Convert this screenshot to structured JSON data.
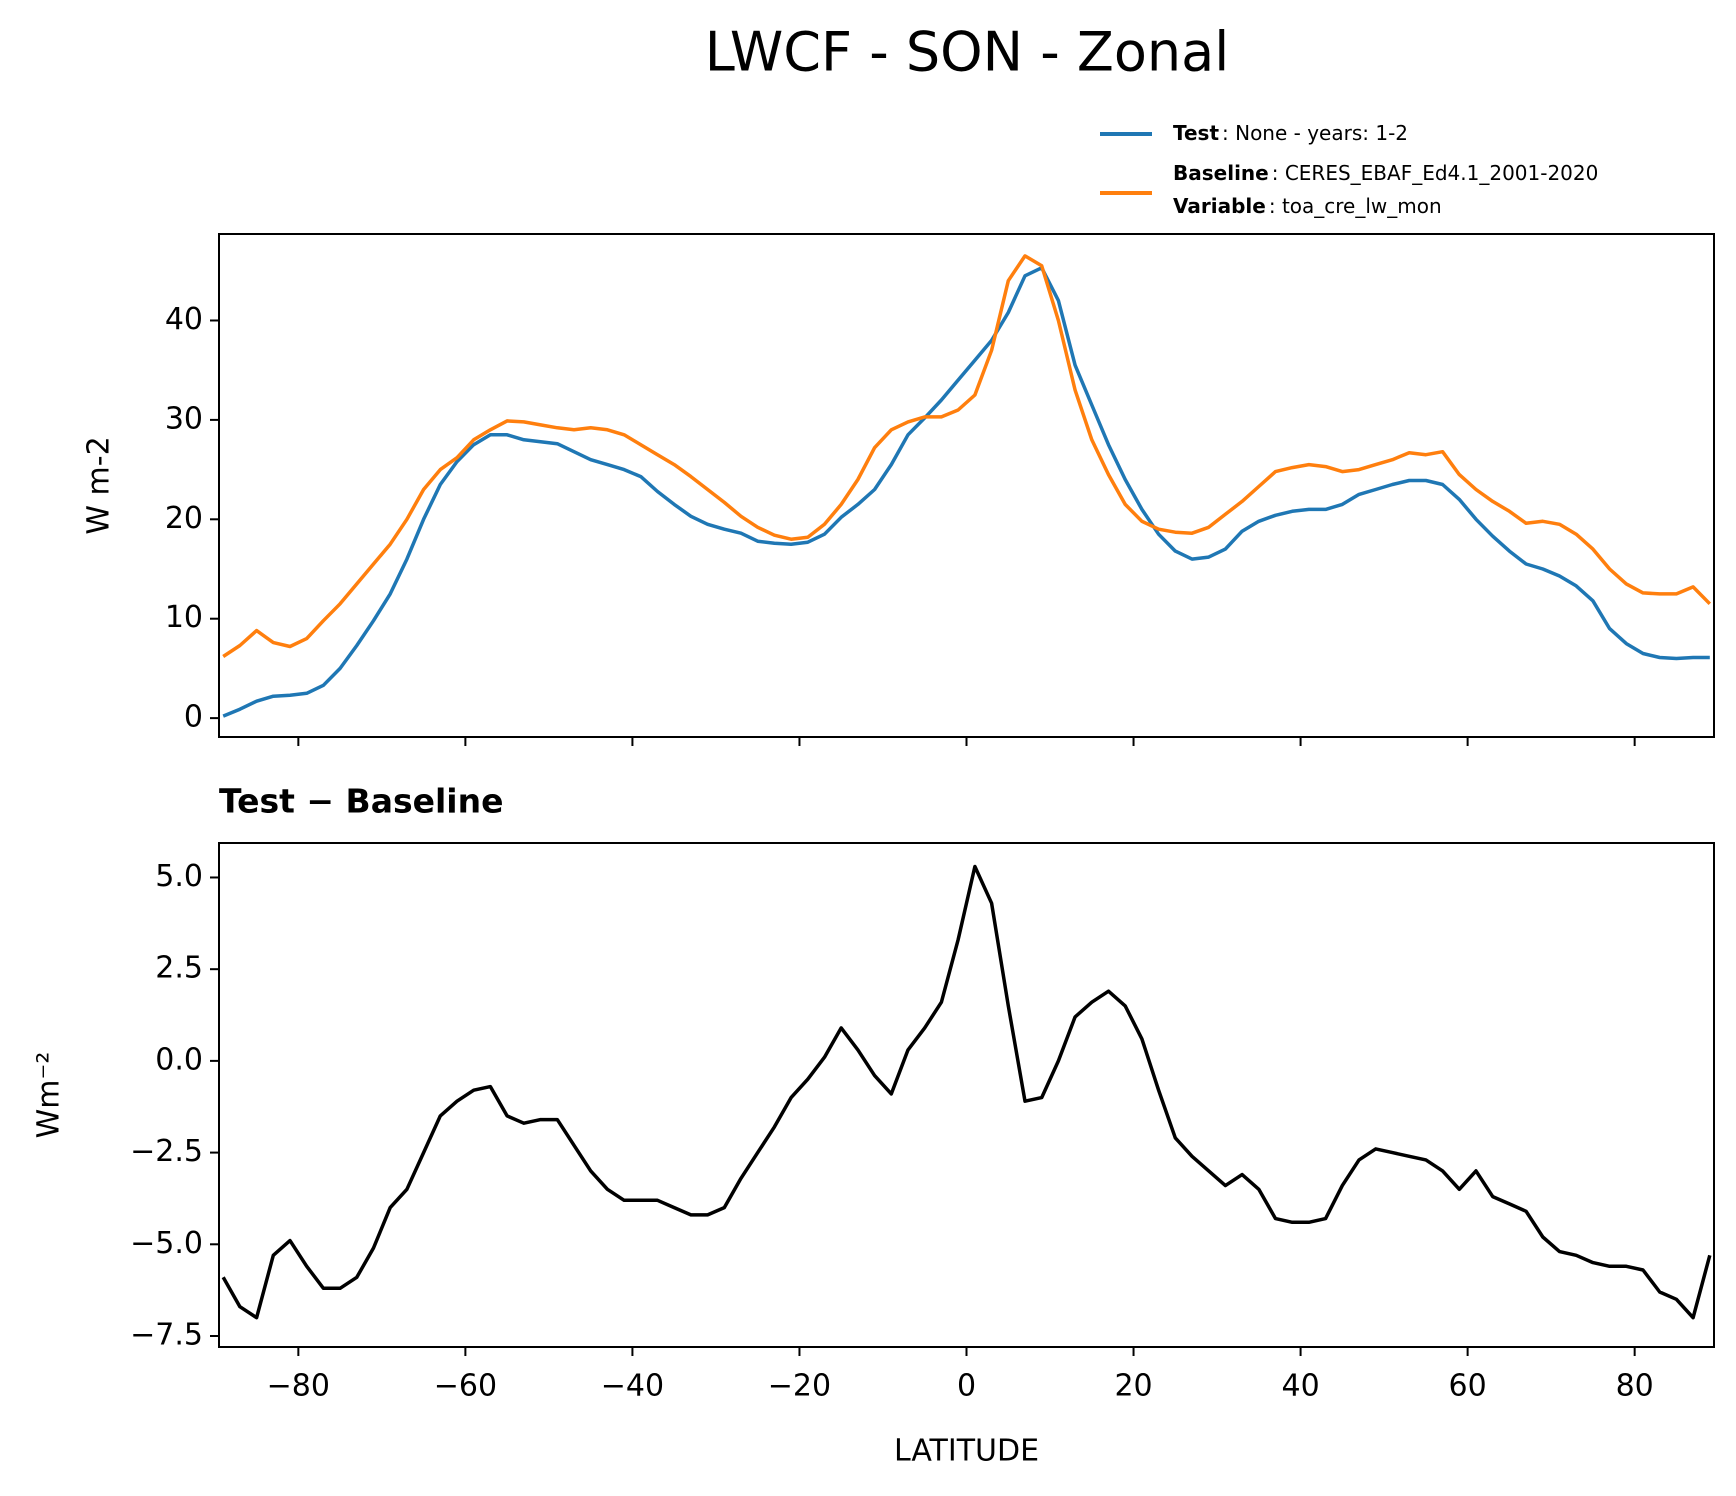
{
  "chart_data": [
    {
      "type": "line",
      "title": "LWCF - SON - Zonal",
      "ylabel": "W m-2",
      "x": [
        -89,
        -87,
        -85,
        -83,
        -81,
        -79,
        -77,
        -75,
        -73,
        -71,
        -69,
        -67,
        -65,
        -63,
        -61,
        -59,
        -57,
        -55,
        -53,
        -51,
        -49,
        -47,
        -45,
        -43,
        -41,
        -39,
        -37,
        -35,
        -33,
        -31,
        -29,
        -27,
        -25,
        -23,
        -21,
        -19,
        -17,
        -15,
        -13,
        -11,
        -9,
        -7,
        -5,
        -3,
        -1,
        1,
        3,
        5,
        7,
        9,
        11,
        13,
        15,
        17,
        19,
        21,
        23,
        25,
        27,
        29,
        31,
        33,
        35,
        37,
        39,
        41,
        43,
        45,
        47,
        49,
        51,
        53,
        55,
        57,
        59,
        61,
        63,
        65,
        67,
        69,
        71,
        73,
        75,
        77,
        79,
        81,
        83,
        85,
        87,
        89
      ],
      "series": [
        {
          "name": "Test",
          "description": ": None - years: 1-2",
          "color": "#1f77b4",
          "values": [
            0.2,
            0.9,
            1.7,
            2.2,
            2.3,
            2.5,
            3.3,
            5,
            7.3,
            9.8,
            12.5,
            16,
            20,
            23.5,
            25.8,
            27.5,
            28.5,
            28.5,
            28,
            27.8,
            27.6,
            26.8,
            26,
            25.5,
            25,
            24.3,
            22.8,
            21.5,
            20.3,
            19.5,
            19,
            18.6,
            17.8,
            17.6,
            17.5,
            17.7,
            18.5,
            20.2,
            21.5,
            23,
            25.5,
            28.5,
            30.2,
            32,
            34,
            36,
            38,
            40.8,
            44.5,
            45.3,
            42,
            35.5,
            31.5,
            27.5,
            24,
            21,
            18.5,
            16.8,
            16,
            16.2,
            17,
            18.8,
            19.8,
            20.4,
            20.8,
            21,
            21,
            21.5,
            22.5,
            23,
            23.5,
            23.9,
            23.9,
            23.5,
            22,
            20,
            18.3,
            16.8,
            15.5,
            15,
            14.3,
            13.3,
            11.8,
            9,
            7.5,
            6.5,
            6.1,
            6,
            6.1,
            6.1
          ]
        },
        {
          "name": "Baseline",
          "description": ": CERES_EBAF_Ed4.1_2001-2020",
          "color": "#ff7f0e",
          "values": [
            6.2,
            7.3,
            8.8,
            7.6,
            7.2,
            8,
            9.8,
            11.5,
            13.5,
            15.5,
            17.5,
            20,
            23,
            25,
            26.2,
            28,
            29,
            29.9,
            29.8,
            29.5,
            29.2,
            29,
            29.2,
            29,
            28.5,
            27.5,
            26.5,
            25.5,
            24.3,
            23,
            21.7,
            20.3,
            19.2,
            18.4,
            18,
            18.2,
            19.5,
            21.5,
            24,
            27.2,
            29,
            29.8,
            30.3,
            30.3,
            31,
            32.5,
            37,
            44,
            46.5,
            45.5,
            40,
            33,
            28,
            24.5,
            21.5,
            19.8,
            19,
            18.7,
            18.6,
            19.2,
            20.5,
            21.8,
            23.3,
            24.8,
            25.2,
            25.5,
            25.3,
            24.8,
            25,
            25.5,
            26,
            26.7,
            26.5,
            26.8,
            24.5,
            23,
            21.8,
            20.8,
            19.6,
            19.8,
            19.5,
            18.5,
            17,
            15,
            13.5,
            12.6,
            12.5,
            12.5,
            13.2,
            11.5
          ]
        }
      ],
      "legend_extra": {
        "name": "Variable",
        "description": ": toa_cre_lw_mon"
      },
      "xlim": [
        -89.5,
        89.5
      ],
      "xticks": [
        -80,
        -60,
        -40,
        -20,
        0,
        20,
        40,
        60,
        80
      ],
      "ylim": [
        -1.9,
        48.7
      ],
      "yticks": [
        0,
        10,
        20,
        30,
        40
      ]
    },
    {
      "type": "line",
      "title": "Test − Baseline",
      "ylabel": "Wm⁻²",
      "xlabel": "LATITUDE",
      "x": [
        -89,
        -87,
        -85,
        -83,
        -81,
        -79,
        -77,
        -75,
        -73,
        -71,
        -69,
        -67,
        -65,
        -63,
        -61,
        -59,
        -57,
        -55,
        -53,
        -51,
        -49,
        -47,
        -45,
        -43,
        -41,
        -39,
        -37,
        -35,
        -33,
        -31,
        -29,
        -27,
        -25,
        -23,
        -21,
        -19,
        -17,
        -15,
        -13,
        -11,
        -9,
        -7,
        -5,
        -3,
        -1,
        1,
        3,
        5,
        7,
        9,
        11,
        13,
        15,
        17,
        19,
        21,
        23,
        25,
        27,
        29,
        31,
        33,
        35,
        37,
        39,
        41,
        43,
        45,
        47,
        49,
        51,
        53,
        55,
        57,
        59,
        61,
        63,
        65,
        67,
        69,
        71,
        73,
        75,
        77,
        79,
        81,
        83,
        85,
        87,
        89
      ],
      "series": [
        {
          "color": "#000000",
          "values": [
            -5.9,
            -6.7,
            -7.0,
            -5.3,
            -4.9,
            -5.6,
            -6.2,
            -6.2,
            -5.9,
            -5.1,
            -4.0,
            -3.5,
            -2.5,
            -1.5,
            -1.1,
            -0.8,
            -0.7,
            -1.5,
            -1.7,
            -1.6,
            -1.6,
            -2.3,
            -3.0,
            -3.5,
            -3.8,
            -3.8,
            -3.8,
            -4.0,
            -4.2,
            -4.2,
            -4.0,
            -3.2,
            -2.5,
            -1.8,
            -1.0,
            -0.5,
            0.1,
            0.9,
            0.3,
            -0.4,
            -0.9,
            0.3,
            0.9,
            1.6,
            3.3,
            5.3,
            4.3,
            1.5,
            -1.1,
            -1.0,
            0.0,
            1.2,
            1.6,
            1.9,
            1.5,
            0.6,
            -0.8,
            -2.1,
            -2.6,
            -3.0,
            -3.4,
            -3.1,
            -3.5,
            -4.3,
            -4.4,
            -4.4,
            -4.3,
            -3.4,
            -2.7,
            -2.4,
            -2.5,
            -2.6,
            -2.7,
            -3.0,
            -3.5,
            -3.0,
            -3.7,
            -3.9,
            -4.1,
            -4.8,
            -5.2,
            -5.3,
            -5.5,
            -5.6,
            -5.6,
            -5.7,
            -6.3,
            -6.5,
            -7.0,
            -5.3
          ]
        }
      ],
      "xlim": [
        -89.5,
        89.5
      ],
      "xticks": [
        {
          "value": -80,
          "label": "−80"
        },
        {
          "value": -60,
          "label": "−60"
        },
        {
          "value": -40,
          "label": "−40"
        },
        {
          "value": -20,
          "label": "−20"
        },
        0,
        20,
        40,
        60,
        80
      ],
      "ylim": [
        -7.8,
        5.94
      ],
      "yticks": [
        {
          "value": -7.5,
          "label": "−7.5"
        },
        {
          "value": -5,
          "label": "−5.0"
        },
        {
          "value": -2.5,
          "label": "−2.5"
        },
        {
          "value": 0,
          "label": "0.0"
        },
        {
          "value": 2.5,
          "label": "2.5"
        },
        {
          "value": 5,
          "label": "5.0"
        }
      ]
    }
  ]
}
